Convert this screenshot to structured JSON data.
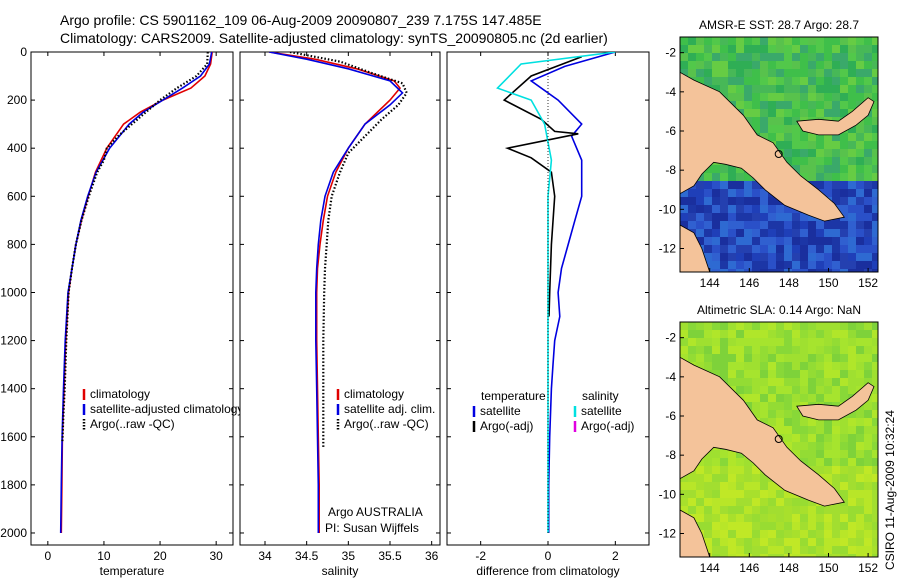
{
  "figure": {
    "title_line1": "Argo profile: CS 5901162_109 06-Aug-2009 20090807_239 7.175S 147.485E",
    "title_line2": "Climatology: CARS2009. Satellite-adjusted climatology: synTS_20090805.nc (2d earlier)",
    "agency": "Argo AUSTRALIA",
    "pi": "PI: Susan Wijffels",
    "stamp": "CSIRO 11-Aug-2009 10:32:24"
  },
  "chart_data": [
    {
      "type": "line",
      "id": "temperature",
      "xlabel": "temperature",
      "ylabel": "",
      "xlim": [
        -3,
        33
      ],
      "ylim": [
        2050,
        0
      ],
      "y_reversed": true,
      "xticks": [
        "0",
        "10",
        "20",
        "30"
      ],
      "xtick_values": [
        0,
        10,
        20,
        30
      ],
      "yticks": [
        "0",
        "200",
        "400",
        "600",
        "800",
        "1000",
        "1200",
        "1400",
        "1600",
        "1800",
        "2000"
      ],
      "ytick_values": [
        0,
        200,
        400,
        600,
        800,
        1000,
        1200,
        1400,
        1600,
        1800,
        2000
      ],
      "legend_loc": "lower-right",
      "legend": [
        {
          "label": "climatology",
          "color": "#e00000",
          "style": "solid"
        },
        {
          "label": "satellite-adjusted climatology",
          "color": "#0000e0",
          "style": "solid"
        },
        {
          "label": "Argo(..raw -QC)",
          "color": "#000000",
          "style": "dots"
        }
      ],
      "series": [
        {
          "color": "#e00000",
          "style": "solid",
          "x": [
            29.3,
            29.0,
            28.0,
            25.5,
            20.5,
            16.5,
            13.5,
            10.5,
            8.5,
            7.2,
            6.0,
            5.0,
            4.3,
            3.7,
            3.2,
            2.9,
            2.6,
            2.5,
            2.4
          ],
          "y": [
            0,
            50,
            100,
            150,
            200,
            250,
            300,
            400,
            500,
            600,
            700,
            800,
            900,
            1000,
            1200,
            1400,
            1600,
            1800,
            2000
          ]
        },
        {
          "color": "#0000e0",
          "style": "solid",
          "x": [
            29.2,
            28.8,
            27.2,
            24.0,
            20.5,
            17.0,
            14.5,
            11.0,
            8.6,
            7.1,
            5.9,
            5.0,
            4.3,
            3.6,
            3.1,
            2.8,
            2.55,
            2.4,
            2.3
          ],
          "y": [
            0,
            50,
            100,
            150,
            200,
            250,
            300,
            400,
            500,
            600,
            700,
            800,
            900,
            1000,
            1200,
            1400,
            1600,
            1800,
            2000
          ]
        },
        {
          "color": "#000000",
          "style": "dots",
          "x": [
            28.5,
            28.4,
            26.5,
            23.0,
            20.0,
            17.5,
            15.0,
            12.5,
            10.5,
            10.0,
            8.8,
            7.3,
            6.0,
            5.0,
            4.3,
            3.7,
            3.3,
            3.0,
            2.8,
            2.6
          ],
          "y": [
            0,
            50,
            100,
            150,
            200,
            250,
            300,
            350,
            400,
            450,
            500,
            600,
            700,
            800,
            900,
            1000,
            1200,
            1400,
            1500,
            1620
          ]
        }
      ]
    },
    {
      "type": "line",
      "id": "salinity",
      "xlabel": "salinity",
      "ylabel": "",
      "xlim": [
        33.7,
        36.1
      ],
      "ylim": [
        2050,
        0
      ],
      "y_reversed": true,
      "xticks": [
        "34",
        "34.5",
        "35",
        "35.5",
        "36"
      ],
      "xtick_values": [
        34,
        34.5,
        35,
        35.5,
        36
      ],
      "legend_loc": "lower-right",
      "legend": [
        {
          "label": "climatology",
          "color": "#e00000",
          "style": "solid"
        },
        {
          "label": "satellite adj. clim.",
          "color": "#0000e0",
          "style": "solid"
        },
        {
          "label": "Argo(..raw -QC)",
          "color": "#000000",
          "style": "dots"
        }
      ],
      "series": [
        {
          "color": "#e00000",
          "style": "solid",
          "x": [
            34.05,
            34.6,
            35.1,
            35.55,
            35.62,
            35.5,
            35.2,
            35.0,
            34.85,
            34.75,
            34.7,
            34.66,
            34.63,
            34.62,
            34.62,
            34.63,
            34.64,
            34.65,
            34.65
          ],
          "y": [
            0,
            30,
            70,
            120,
            150,
            200,
            300,
            400,
            500,
            600,
            700,
            800,
            900,
            1000,
            1200,
            1400,
            1600,
            1800,
            2000
          ]
        },
        {
          "color": "#0000e0",
          "style": "solid",
          "x": [
            34.05,
            34.5,
            35.0,
            35.5,
            35.65,
            35.5,
            35.2,
            35.0,
            34.82,
            34.72,
            34.67,
            34.64,
            34.62,
            34.61,
            34.61,
            34.62,
            34.63,
            34.64,
            34.64
          ],
          "y": [
            0,
            30,
            70,
            120,
            170,
            220,
            300,
            400,
            500,
            600,
            700,
            800,
            900,
            1000,
            1200,
            1400,
            1600,
            1800,
            2000
          ]
        },
        {
          "color": "#000000",
          "style": "dots",
          "x": [
            34.3,
            34.9,
            35.3,
            35.65,
            35.7,
            35.6,
            35.4,
            35.2,
            35.0,
            34.9,
            34.8,
            34.76,
            34.74,
            34.72,
            34.71,
            34.7,
            34.7,
            34.7,
            34.7
          ],
          "y": [
            0,
            40,
            90,
            130,
            170,
            220,
            280,
            350,
            420,
            500,
            600,
            700,
            800,
            900,
            1000,
            1200,
            1400,
            1500,
            1650
          ]
        }
      ]
    },
    {
      "type": "line",
      "id": "difference",
      "xlabel": "difference from climatology",
      "ylabel": "",
      "xlim": [
        -3,
        3
      ],
      "ylim": [
        2050,
        0
      ],
      "y_reversed": true,
      "xticks": [
        "-2",
        "0",
        "2"
      ],
      "xtick_values": [
        -2,
        0,
        2
      ],
      "legend_loc": "lower-right",
      "legend_headers": [
        "temperature",
        "salinity"
      ],
      "legend": [
        {
          "label": "satellite",
          "color": "#0000e0",
          "style": "solid"
        },
        {
          "label": "Argo(-adj)",
          "color": "#000000",
          "style": "solid"
        },
        {
          "label": "satellite",
          "color": "#00e0e0",
          "style": "solid"
        },
        {
          "label": "Argo(-adj)",
          "color": "#e000e0",
          "style": "solid"
        }
      ],
      "series": [
        {
          "color": "#0000e0",
          "style": "solid",
          "x": [
            2.0,
            0.5,
            -0.5,
            0.3,
            1.0,
            0.7,
            1.0,
            1.0,
            0.8,
            0.6,
            0.4,
            0.3,
            0.35,
            0.2,
            0.15,
            0.1,
            0.05,
            0.02,
            0.02
          ],
          "y": [
            0,
            60,
            120,
            200,
            300,
            350,
            450,
            600,
            700,
            800,
            900,
            1000,
            1100,
            1200,
            1300,
            1400,
            1600,
            1800,
            2000
          ]
        },
        {
          "color": "#000000",
          "style": "solid",
          "x": [
            1.0,
            -0.5,
            -1.3,
            -0.2,
            0.2,
            0.9,
            -1.2,
            -0.5,
            0.1,
            0.2,
            0.1,
            0.05,
            0.03
          ],
          "y": [
            20,
            100,
            200,
            280,
            330,
            340,
            400,
            440,
            500,
            600,
            800,
            1000,
            1100
          ]
        },
        {
          "color": "#00e0e0",
          "style": "solid",
          "x": [
            2.0,
            -0.8,
            -1.5,
            -0.5,
            -0.1,
            0.1,
            0.0,
            0.0,
            0.0,
            0.0,
            0.0,
            0.0
          ],
          "y": [
            0,
            50,
            150,
            200,
            300,
            450,
            600,
            800,
            1000,
            1400,
            1800,
            2000
          ]
        },
        {
          "color": "#000000",
          "style": "dotted",
          "x": [
            0,
            0
          ],
          "y": [
            0,
            2000
          ]
        }
      ]
    },
    {
      "type": "heatmap",
      "id": "sst-map",
      "title": "AMSR-E SST: 28.7 Argo: 28.7",
      "xlim": [
        142.5,
        152.5
      ],
      "ylim": [
        -13.2,
        -1.2
      ],
      "xticks": [
        "144",
        "146",
        "148",
        "150",
        "152"
      ],
      "xtick_values": [
        144,
        146,
        148,
        150,
        152
      ],
      "yticks": [
        "-2",
        "-4",
        "-6",
        "-8",
        "-10",
        "-12"
      ],
      "ytick_values": [
        -2,
        -4,
        -6,
        -8,
        -10,
        -12
      ],
      "argo_position": {
        "lon": 147.485,
        "lat": -7.175
      }
    },
    {
      "type": "heatmap",
      "id": "sla-map",
      "title": "Altimetric SLA: 0.14 Argo: NaN",
      "xlim": [
        142.5,
        152.5
      ],
      "ylim": [
        -13.2,
        -1.2
      ],
      "xticks": [
        "144",
        "146",
        "148",
        "150",
        "152"
      ],
      "xtick_values": [
        144,
        146,
        148,
        150,
        152
      ],
      "yticks": [
        "-2",
        "-4",
        "-6",
        "-8",
        "-10",
        "-12"
      ],
      "ytick_values": [
        -2,
        -4,
        -6,
        -8,
        -10,
        -12
      ],
      "argo_position": {
        "lon": 147.485,
        "lat": -7.175
      }
    }
  ]
}
